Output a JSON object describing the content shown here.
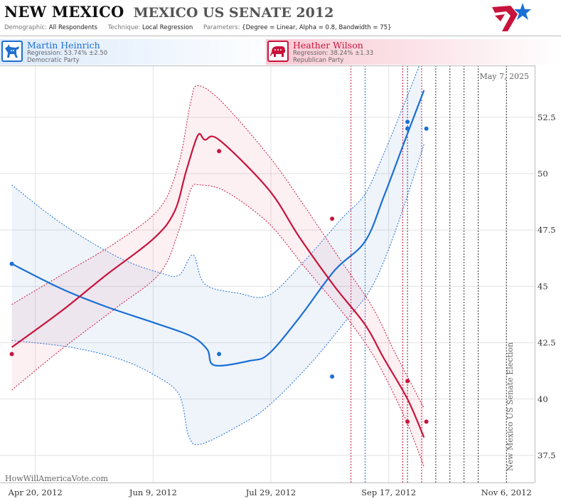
{
  "header": {
    "state": "NEW MEXICO",
    "race": "MEXICO US SENATE 2012",
    "demographic_label": "Demographic:",
    "demographic_value": "All Respondents",
    "technique_label": "Technique:",
    "technique_value": "Local Regression",
    "parameters_label": "Parameters:",
    "parameters_value": "{Degree = Linear, Alpha = 0.8, Bandwidth = 75}"
  },
  "candidates": {
    "dem": {
      "name": "Martin Heinrich",
      "regression": "Regression: 53.74% ±2.50",
      "party": "Democratic Party",
      "color": "#1a6fd4"
    },
    "rep": {
      "name": "Heather Wilson",
      "regression": "Regression: 38.24% ±1.33",
      "party": "Republican Party",
      "color": "#c8143c"
    }
  },
  "chart_data": {
    "type": "line",
    "date_printed": "May 7, 2025",
    "watermark": "HowWillAmericaVote.com",
    "event_label": "New Mexico US Senate Election",
    "x_ticks": [
      "2012-04-20",
      "2012-06-09",
      "2012-07-29",
      "2012-09-17",
      "2012-11-06"
    ],
    "x_tick_labels": [
      "Apr 20, 2012",
      "Jun 9, 2012",
      "Jul 29, 2012",
      "Sep 17, 2012",
      "Nov 6, 2012"
    ],
    "xlim": [
      "2012-04-05",
      "2012-11-18"
    ],
    "y_ticks": [
      37.5,
      40,
      42.5,
      45,
      47.5,
      50,
      52.5
    ],
    "ylim": [
      36.3,
      54.8
    ],
    "event_date": "2012-11-06",
    "debate_lines_red": [
      "2012-09-01",
      "2012-09-23",
      "2012-10-01"
    ],
    "debate_lines_blue": [
      "2012-09-07"
    ],
    "reference_lines_black": [
      "2012-09-25",
      "2012-10-01",
      "2012-10-07",
      "2012-10-13",
      "2012-10-19",
      "2012-10-25",
      "2012-11-06"
    ],
    "series": [
      {
        "name": "Martin Heinrich",
        "color": "#1a6fd4",
        "line": [
          {
            "x": "2012-04-10",
            "y": 46.0
          },
          {
            "x": "2012-05-01",
            "y": 44.9
          },
          {
            "x": "2012-05-20",
            "y": 44.1
          },
          {
            "x": "2012-06-09",
            "y": 43.4
          },
          {
            "x": "2012-06-25",
            "y": 42.8
          },
          {
            "x": "2012-07-02",
            "y": 42.2
          },
          {
            "x": "2012-07-05",
            "y": 41.5
          },
          {
            "x": "2012-07-20",
            "y": 41.7
          },
          {
            "x": "2012-07-28",
            "y": 42.0
          },
          {
            "x": "2012-08-10",
            "y": 43.6
          },
          {
            "x": "2012-08-25",
            "y": 45.7
          },
          {
            "x": "2012-09-07",
            "y": 47.0
          },
          {
            "x": "2012-09-15",
            "y": 49.0
          },
          {
            "x": "2012-09-24",
            "y": 51.5
          },
          {
            "x": "2012-10-02",
            "y": 53.7
          }
        ],
        "upper": [
          {
            "x": "2012-04-10",
            "y": 49.5
          },
          {
            "x": "2012-05-01",
            "y": 47.8
          },
          {
            "x": "2012-05-25",
            "y": 46.3
          },
          {
            "x": "2012-06-12",
            "y": 45.6
          },
          {
            "x": "2012-06-20",
            "y": 45.5
          },
          {
            "x": "2012-06-26",
            "y": 46.4
          },
          {
            "x": "2012-07-01",
            "y": 45.1
          },
          {
            "x": "2012-07-15",
            "y": 44.7
          },
          {
            "x": "2012-07-28",
            "y": 44.6
          },
          {
            "x": "2012-08-12",
            "y": 46.1
          },
          {
            "x": "2012-08-28",
            "y": 48.0
          },
          {
            "x": "2012-09-07",
            "y": 49.1
          },
          {
            "x": "2012-09-15",
            "y": 50.9
          },
          {
            "x": "2012-09-24",
            "y": 53.2
          },
          {
            "x": "2012-09-30",
            "y": 54.8
          }
        ],
        "lower": [
          {
            "x": "2012-04-10",
            "y": 42.6
          },
          {
            "x": "2012-05-05",
            "y": 42.3
          },
          {
            "x": "2012-05-25",
            "y": 41.8
          },
          {
            "x": "2012-06-09",
            "y": 41.1
          },
          {
            "x": "2012-06-20",
            "y": 40.2
          },
          {
            "x": "2012-06-24",
            "y": 38.4
          },
          {
            "x": "2012-06-29",
            "y": 38.0
          },
          {
            "x": "2012-07-15",
            "y": 38.8
          },
          {
            "x": "2012-07-28",
            "y": 39.7
          },
          {
            "x": "2012-08-15",
            "y": 41.6
          },
          {
            "x": "2012-08-30",
            "y": 43.5
          },
          {
            "x": "2012-09-10",
            "y": 45.0
          },
          {
            "x": "2012-09-20",
            "y": 47.5
          },
          {
            "x": "2012-10-02",
            "y": 51.3
          }
        ],
        "polls": [
          {
            "x": "2012-04-10",
            "y": 46
          },
          {
            "x": "2012-07-07",
            "y": 42
          },
          {
            "x": "2012-08-24",
            "y": 41
          },
          {
            "x": "2012-09-25",
            "y": 52.3
          },
          {
            "x": "2012-09-25",
            "y": 52
          },
          {
            "x": "2012-10-03",
            "y": 52
          }
        ]
      },
      {
        "name": "Heather Wilson",
        "color": "#c8143c",
        "line": [
          {
            "x": "2012-04-10",
            "y": 42.3
          },
          {
            "x": "2012-05-01",
            "y": 43.9
          },
          {
            "x": "2012-05-20",
            "y": 45.5
          },
          {
            "x": "2012-06-09",
            "y": 47.1
          },
          {
            "x": "2012-06-18",
            "y": 48.3
          },
          {
            "x": "2012-06-23",
            "y": 50.1
          },
          {
            "x": "2012-06-28",
            "y": 51.7
          },
          {
            "x": "2012-07-01",
            "y": 51.5
          },
          {
            "x": "2012-07-07",
            "y": 51.5
          },
          {
            "x": "2012-07-28",
            "y": 49.3
          },
          {
            "x": "2012-08-10",
            "y": 47.2
          },
          {
            "x": "2012-08-25",
            "y": 45.0
          },
          {
            "x": "2012-09-07",
            "y": 43.3
          },
          {
            "x": "2012-09-15",
            "y": 41.8
          },
          {
            "x": "2012-09-25",
            "y": 40.0
          },
          {
            "x": "2012-10-02",
            "y": 38.3
          }
        ],
        "upper": [
          {
            "x": "2012-04-10",
            "y": 44.2
          },
          {
            "x": "2012-05-01",
            "y": 45.5
          },
          {
            "x": "2012-05-25",
            "y": 47.0
          },
          {
            "x": "2012-06-12",
            "y": 48.5
          },
          {
            "x": "2012-06-20",
            "y": 50.5
          },
          {
            "x": "2012-06-25",
            "y": 53.2
          },
          {
            "x": "2012-06-28",
            "y": 53.9
          },
          {
            "x": "2012-07-08",
            "y": 53.2
          },
          {
            "x": "2012-07-28",
            "y": 50.8
          },
          {
            "x": "2012-08-12",
            "y": 48.6
          },
          {
            "x": "2012-08-28",
            "y": 46.1
          },
          {
            "x": "2012-09-10",
            "y": 44.1
          },
          {
            "x": "2012-09-20",
            "y": 42.0
          },
          {
            "x": "2012-10-02",
            "y": 39.6
          }
        ],
        "lower": [
          {
            "x": "2012-04-10",
            "y": 40.4
          },
          {
            "x": "2012-05-01",
            "y": 42.2
          },
          {
            "x": "2012-05-25",
            "y": 44.1
          },
          {
            "x": "2012-06-12",
            "y": 45.6
          },
          {
            "x": "2012-06-20",
            "y": 47.5
          },
          {
            "x": "2012-06-25",
            "y": 49.3
          },
          {
            "x": "2012-06-29",
            "y": 49.5
          },
          {
            "x": "2012-07-10",
            "y": 49.2
          },
          {
            "x": "2012-07-28",
            "y": 47.8
          },
          {
            "x": "2012-08-12",
            "y": 45.9
          },
          {
            "x": "2012-08-28",
            "y": 43.9
          },
          {
            "x": "2012-09-07",
            "y": 42.5
          },
          {
            "x": "2012-09-15",
            "y": 41.1
          },
          {
            "x": "2012-09-25",
            "y": 38.9
          },
          {
            "x": "2012-10-02",
            "y": 37.0
          }
        ],
        "polls": [
          {
            "x": "2012-04-10",
            "y": 42
          },
          {
            "x": "2012-07-07",
            "y": 51
          },
          {
            "x": "2012-08-24",
            "y": 48
          },
          {
            "x": "2012-09-25",
            "y": 40.8
          },
          {
            "x": "2012-09-25",
            "y": 39
          },
          {
            "x": "2012-10-03",
            "y": 39
          }
        ]
      }
    ]
  }
}
